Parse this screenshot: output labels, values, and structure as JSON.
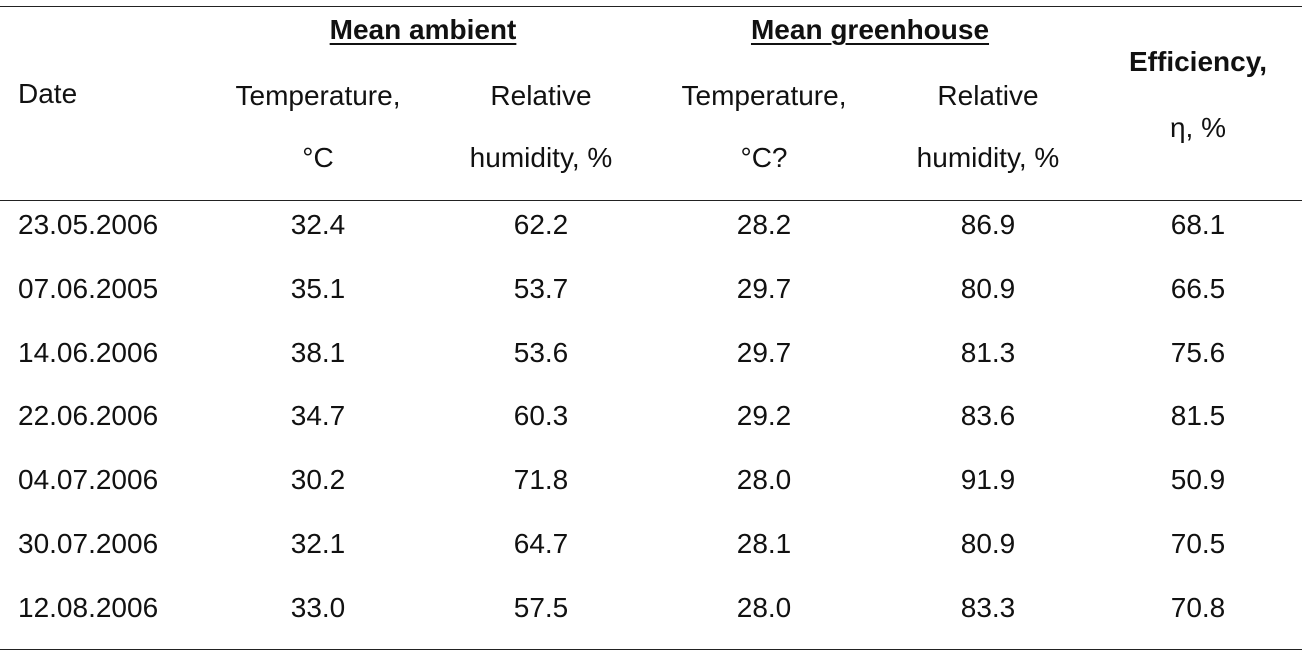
{
  "header": {
    "date_label": "Date",
    "groups": {
      "ambient": "Mean ambient",
      "greenhouse": "Mean greenhouse"
    },
    "columns": {
      "amb_temp_line1": "Temperature,",
      "amb_temp_line2": "°C",
      "amb_rh_line1": "Relative",
      "amb_rh_line2": "humidity, %",
      "gh_temp_line1": "Temperature,",
      "gh_temp_line2": "°C?",
      "gh_rh_line1": "Relative",
      "gh_rh_line2": "humidity, %",
      "eff_line1": "Efficiency,",
      "eff_line2": "η, %"
    }
  },
  "rows": [
    {
      "date": "23.05.2006",
      "amb_temp": "32.4",
      "amb_rh": "62.2",
      "gh_temp": "28.2",
      "gh_rh": "86.9",
      "eff": "68.1"
    },
    {
      "date": "07.06.2005",
      "amb_temp": "35.1",
      "amb_rh": "53.7",
      "gh_temp": "29.7",
      "gh_rh": "80.9",
      "eff": "66.5"
    },
    {
      "date": "14.06.2006",
      "amb_temp": "38.1",
      "amb_rh": "53.6",
      "gh_temp": "29.7",
      "gh_rh": "81.3",
      "eff": "75.6"
    },
    {
      "date": "22.06.2006",
      "amb_temp": "34.7",
      "amb_rh": "60.3",
      "gh_temp": "29.2",
      "gh_rh": "83.6",
      "eff": "81.5"
    },
    {
      "date": "04.07.2006",
      "amb_temp": "30.2",
      "amb_rh": "71.8",
      "gh_temp": "28.0",
      "gh_rh": "91.9",
      "eff": "50.9"
    },
    {
      "date": "30.07.2006",
      "amb_temp": "32.1",
      "amb_rh": "64.7",
      "gh_temp": "28.1",
      "gh_rh": "80.9",
      "eff": "70.5"
    },
    {
      "date": "12.08.2006",
      "amb_temp": "33.0",
      "amb_rh": "57.5",
      "gh_temp": "28.0",
      "gh_rh": "83.3",
      "eff": "70.8"
    }
  ]
}
